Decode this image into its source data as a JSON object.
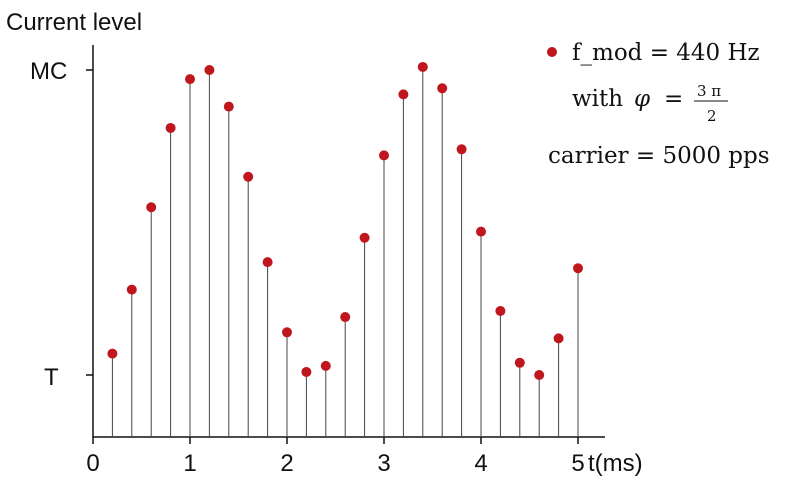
{
  "chart_data": {
    "type": "scatter",
    "style": "stem",
    "ylabel": "Current level",
    "xlabel": "t(ms)",
    "xlim": [
      0,
      5.6
    ],
    "xticks": [
      0,
      1,
      2,
      3,
      4,
      5
    ],
    "ytick_labels": {
      "top": "MC",
      "bottom": "T"
    },
    "marker_color": "#c0161d",
    "stem_color": "#444444",
    "x": [
      0.2,
      0.4,
      0.6,
      0.8,
      1.0,
      1.2,
      1.4,
      1.6,
      1.8,
      2.0,
      2.2,
      2.4,
      2.6,
      2.8,
      3.0,
      3.2,
      3.4,
      3.6,
      3.8,
      4.0,
      4.2,
      4.4,
      4.6,
      4.8,
      5.0
    ],
    "y": [
      0.07,
      0.28,
      0.55,
      0.81,
      0.97,
      1.0,
      0.88,
      0.65,
      0.37,
      0.14,
      0.01,
      0.03,
      0.19,
      0.45,
      0.72,
      0.92,
      1.01,
      0.94,
      0.74,
      0.47,
      0.21,
      0.04,
      0.0,
      0.12,
      0.35
    ],
    "legend": {
      "line1": "f_mod = 440 Hz",
      "line2_prefix": "with",
      "phi": "φ",
      "equals": "=",
      "frac_num": "3 π",
      "frac_den": "2",
      "line3": "carrier = 5000 pps"
    }
  }
}
